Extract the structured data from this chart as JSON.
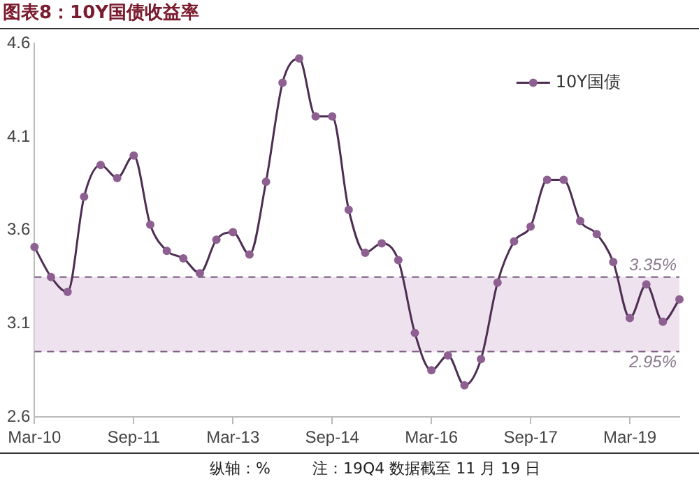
{
  "chart_data": {
    "type": "line",
    "title": "图表8：10Y国债收益率",
    "categories": [
      "Mar-10",
      null,
      null,
      null,
      null,
      null,
      "Sep-11",
      null,
      null,
      null,
      null,
      null,
      "Mar-13",
      null,
      null,
      null,
      null,
      null,
      "Sep-14",
      null,
      null,
      null,
      null,
      null,
      "Mar-16",
      null,
      null,
      null,
      null,
      null,
      "Sep-17",
      null,
      null,
      null,
      null,
      null,
      "Mar-19",
      null,
      null,
      null
    ],
    "series": [
      {
        "name": "10Y国债",
        "color": "#4e2d52",
        "values": [
          3.51,
          3.35,
          3.27,
          3.78,
          3.95,
          3.88,
          4.0,
          3.63,
          3.49,
          3.45,
          3.37,
          3.55,
          3.59,
          3.47,
          3.86,
          4.39,
          4.52,
          4.21,
          4.21,
          3.71,
          3.48,
          3.53,
          3.44,
          3.05,
          2.85,
          2.93,
          2.77,
          2.91,
          3.32,
          3.54,
          3.62,
          3.87,
          3.87,
          3.65,
          3.58,
          3.43,
          3.13,
          3.31,
          3.11,
          3.23
        ]
      }
    ],
    "ylim": [
      2.6,
      4.6
    ],
    "yticks": [
      2.6,
      3.1,
      3.6,
      4.1,
      4.6
    ],
    "bands": [
      {
        "axis": "y",
        "from": 2.95,
        "to": 3.35,
        "color": "#ede2ee"
      }
    ],
    "ref_lines": [
      {
        "axis": "y",
        "value": 3.35,
        "label": "3.35%",
        "color": "#7a5a80",
        "line_style": "dashed"
      },
      {
        "axis": "y",
        "value": 2.95,
        "label": "2.95%",
        "color": "#7a5a80",
        "line_style": "dashed"
      }
    ],
    "annotations": [
      "纵轴：%",
      "注：19Q4 数据截至 11 月 19 日"
    ],
    "grid": false,
    "legend": "top right",
    "marker": "circle",
    "line_style": "solid"
  }
}
